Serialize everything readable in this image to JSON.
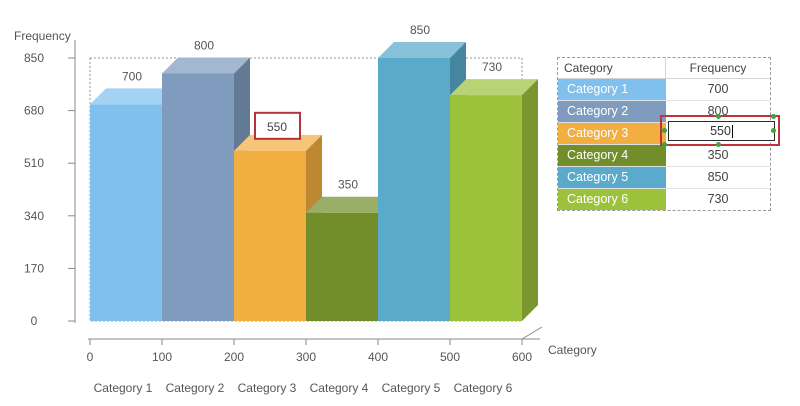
{
  "chart_data": {
    "type": "bar",
    "subtype": "3d-bar-with-data-table",
    "ylabel": "Frequency",
    "xlabel": "Category",
    "ylim": [
      0,
      850
    ],
    "xlim": [
      0,
      600
    ],
    "yticks": [
      0,
      170,
      340,
      510,
      680,
      850
    ],
    "xticks": [
      0,
      100,
      200,
      300,
      400,
      500,
      600
    ],
    "categories": [
      "Category 1",
      "Category 2",
      "Category 3",
      "Category 4",
      "Category 5",
      "Category 6"
    ],
    "values": [
      700,
      800,
      550,
      350,
      850,
      730
    ],
    "value_labels": [
      "700",
      "800",
      "550",
      "350",
      "850",
      "730"
    ],
    "colors": [
      "#7fc0ee",
      "#7f9cbe",
      "#f3ae42",
      "#718e2a",
      "#59aacb",
      "#9cc23c"
    ],
    "selected_index": 2,
    "grid": false
  },
  "data_table": {
    "headers": [
      "Category",
      "Frequency"
    ],
    "rows": [
      {
        "category": "Category 1",
        "frequency": "700"
      },
      {
        "category": "Category 2",
        "frequency": "800"
      },
      {
        "category": "Category 3",
        "frequency": "550"
      },
      {
        "category": "Category 4",
        "frequency": "350"
      },
      {
        "category": "Category 5",
        "frequency": "850"
      },
      {
        "category": "Category 6",
        "frequency": "730"
      }
    ],
    "editing_value": "550"
  }
}
